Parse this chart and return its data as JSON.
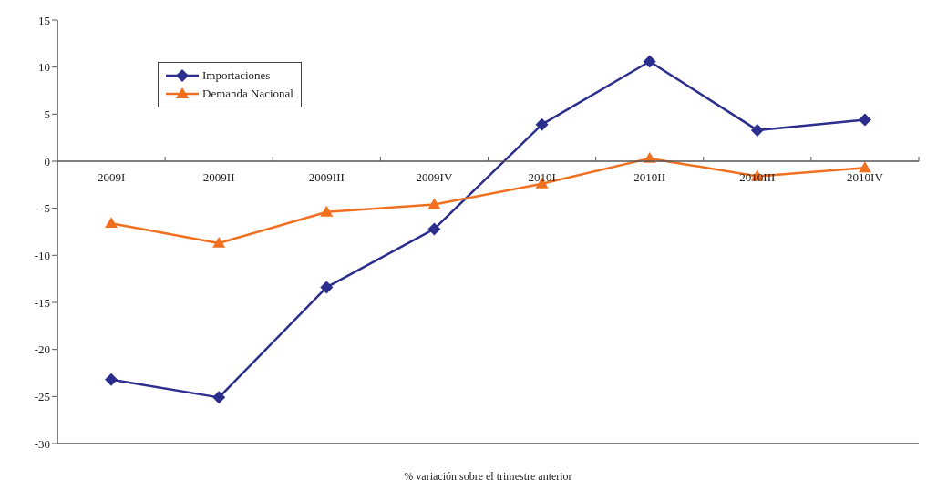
{
  "chart_data": {
    "type": "line",
    "xlabel": "% variación sobre el trimestre anterior",
    "categories": [
      "2009I",
      "2009II",
      "2009III",
      "2009IV",
      "2010I",
      "2010II",
      "2010III",
      "2010IV"
    ],
    "series": [
      {
        "name": "Importaciones",
        "color": "#2b2e8c",
        "marker": "diamond",
        "values": [
          -23.2,
          -25.1,
          -13.4,
          -7.2,
          3.9,
          10.6,
          3.3,
          4.4
        ]
      },
      {
        "name": "Demanda Nacional",
        "color": "#f07020",
        "marker": "triangle",
        "values": [
          -6.6,
          -8.7,
          -5.4,
          -4.6,
          -2.4,
          0.3,
          -1.6,
          -0.7
        ]
      }
    ],
    "ylim": [
      -30,
      15
    ],
    "yticks": [
      -30,
      -25,
      -20,
      -15,
      -10,
      -5,
      0,
      5,
      10,
      15
    ],
    "grid": false,
    "legend": "top left",
    "line_style": "solid"
  }
}
